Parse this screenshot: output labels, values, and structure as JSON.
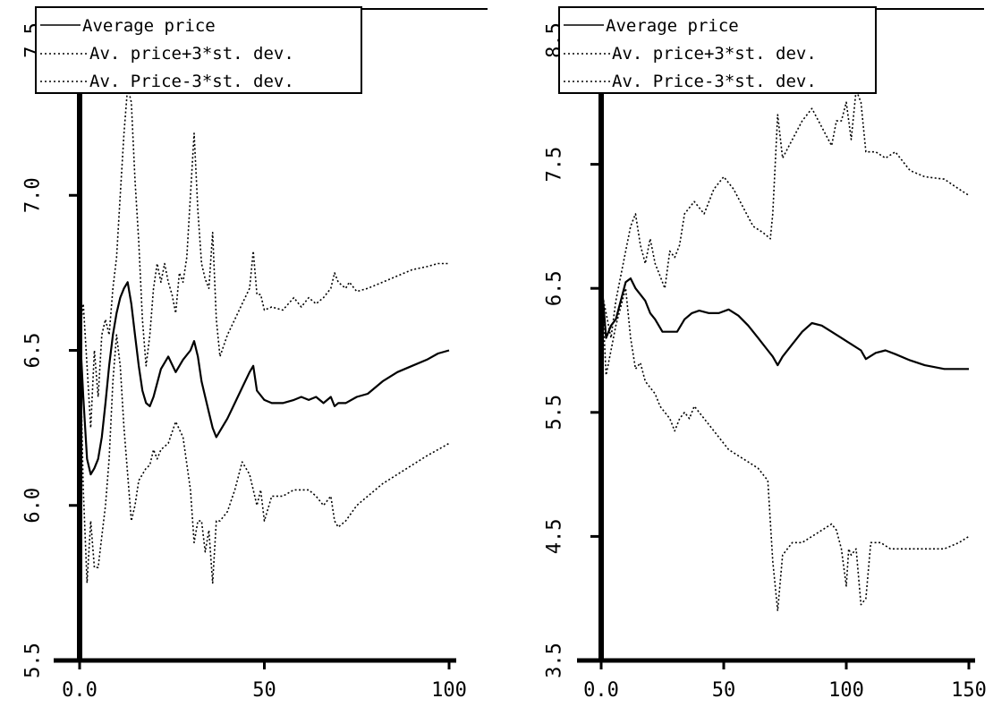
{
  "chart_data": [
    {
      "type": "line",
      "title": "",
      "xlabel": "",
      "ylabel": "",
      "xlim": [
        0,
        100
      ],
      "ylim": [
        5.5,
        7.5
      ],
      "xticks": [
        0,
        50,
        100
      ],
      "xtick_labels": [
        "0.0",
        "50",
        "100"
      ],
      "yticks": [
        5.5,
        6.0,
        6.5,
        7.0,
        7.5
      ],
      "ytick_labels": [
        "5.5",
        "6.0",
        "6.5",
        "7.0",
        "7.5"
      ],
      "grid": false,
      "legend_position": "top-left",
      "series": [
        {
          "name": "Average price",
          "style": "solid",
          "x": [
            0,
            1,
            2,
            3,
            4,
            5,
            6,
            7,
            8,
            9,
            10,
            11,
            12,
            13,
            14,
            15,
            16,
            17,
            18,
            19,
            20,
            22,
            24,
            26,
            28,
            30,
            31,
            32,
            33,
            34,
            35,
            36,
            37,
            38,
            40,
            42,
            44,
            46,
            47,
            48,
            50,
            52,
            55,
            58,
            60,
            62,
            64,
            66,
            68,
            69,
            70,
            72,
            75,
            78,
            82,
            86,
            90,
            94,
            97,
            100
          ],
          "y": [
            6.58,
            6.35,
            6.15,
            6.1,
            6.12,
            6.15,
            6.22,
            6.33,
            6.45,
            6.55,
            6.62,
            6.67,
            6.7,
            6.72,
            6.65,
            6.55,
            6.45,
            6.37,
            6.33,
            6.32,
            6.35,
            6.44,
            6.48,
            6.43,
            6.47,
            6.5,
            6.53,
            6.48,
            6.4,
            6.35,
            6.3,
            6.25,
            6.22,
            6.24,
            6.28,
            6.33,
            6.38,
            6.43,
            6.45,
            6.37,
            6.34,
            6.33,
            6.33,
            6.34,
            6.35,
            6.34,
            6.35,
            6.33,
            6.35,
            6.32,
            6.33,
            6.33,
            6.35,
            6.36,
            6.4,
            6.43,
            6.45,
            6.47,
            6.49,
            6.5
          ]
        },
        {
          "name": "Av. price+3*st. dev.",
          "style": "dotted",
          "x": [
            0,
            1,
            2,
            3,
            4,
            5,
            6,
            7,
            8,
            9,
            10,
            11,
            12,
            13,
            14,
            15,
            16,
            17,
            18,
            19,
            20,
            21,
            22,
            23,
            24,
            25,
            26,
            27,
            28,
            29,
            30,
            31,
            32,
            33,
            34,
            35,
            36,
            37,
            38,
            40,
            42,
            44,
            46,
            47,
            48,
            49,
            50,
            52,
            55,
            58,
            60,
            62,
            64,
            66,
            68,
            69,
            70,
            72,
            73,
            75,
            78,
            82,
            86,
            90,
            94,
            97,
            100
          ],
          "y": [
            6.55,
            6.65,
            6.45,
            6.25,
            6.5,
            6.35,
            6.55,
            6.6,
            6.55,
            6.7,
            6.8,
            7.0,
            7.2,
            7.35,
            7.3,
            7.05,
            6.85,
            6.6,
            6.45,
            6.55,
            6.7,
            6.78,
            6.72,
            6.78,
            6.72,
            6.68,
            6.62,
            6.75,
            6.72,
            6.8,
            7.0,
            7.2,
            6.95,
            6.78,
            6.73,
            6.7,
            6.88,
            6.6,
            6.48,
            6.55,
            6.6,
            6.65,
            6.7,
            6.82,
            6.68,
            6.68,
            6.63,
            6.64,
            6.63,
            6.67,
            6.64,
            6.67,
            6.65,
            6.67,
            6.7,
            6.75,
            6.72,
            6.7,
            6.72,
            6.69,
            6.7,
            6.72,
            6.74,
            6.76,
            6.77,
            6.78,
            6.78
          ]
        },
        {
          "name": "Av. Price-3*st. dev.",
          "style": "dotted",
          "x": [
            0,
            1,
            2,
            3,
            4,
            5,
            6,
            7,
            8,
            9,
            10,
            11,
            12,
            13,
            14,
            15,
            16,
            17,
            18,
            19,
            20,
            21,
            22,
            24,
            26,
            28,
            30,
            31,
            32,
            33,
            34,
            35,
            36,
            37,
            38,
            40,
            42,
            44,
            46,
            48,
            49,
            50,
            52,
            55,
            58,
            60,
            62,
            64,
            66,
            68,
            69,
            70,
            72,
            75,
            78,
            82,
            86,
            90,
            94,
            97,
            100
          ],
          "y": [
            6.6,
            6.05,
            5.75,
            5.95,
            5.8,
            5.8,
            5.9,
            6.0,
            6.15,
            6.4,
            6.55,
            6.45,
            6.25,
            6.1,
            5.95,
            6.0,
            6.08,
            6.1,
            6.12,
            6.13,
            6.18,
            6.15,
            6.18,
            6.2,
            6.27,
            6.22,
            6.05,
            5.88,
            5.95,
            5.95,
            5.85,
            5.92,
            5.75,
            5.95,
            5.95,
            5.98,
            6.05,
            6.14,
            6.1,
            6.0,
            6.05,
            5.95,
            6.03,
            6.03,
            6.05,
            6.05,
            6.05,
            6.03,
            6.0,
            6.03,
            5.95,
            5.93,
            5.95,
            6.0,
            6.03,
            6.07,
            6.1,
            6.13,
            6.16,
            6.18,
            6.2
          ]
        }
      ]
    },
    {
      "type": "line",
      "title": "",
      "xlabel": "",
      "ylabel": "",
      "xlim": [
        0,
        150
      ],
      "ylim": [
        3.5,
        8.5
      ],
      "xticks": [
        0,
        50,
        100,
        150
      ],
      "xtick_labels": [
        "0.0",
        "50",
        "100",
        "150"
      ],
      "yticks": [
        3.5,
        4.5,
        5.5,
        6.5,
        7.5,
        8.5
      ],
      "ytick_labels": [
        "3.5",
        "4.5",
        "5.5",
        "6.5",
        "7.5",
        "8.5"
      ],
      "grid": false,
      "legend_position": "top-left",
      "series": [
        {
          "name": "Average price",
          "style": "solid",
          "x": [
            0,
            2,
            4,
            6,
            8,
            10,
            12,
            14,
            16,
            18,
            20,
            22,
            25,
            28,
            31,
            34,
            37,
            40,
            44,
            48,
            52,
            56,
            60,
            64,
            68,
            70,
            72,
            74,
            78,
            82,
            86,
            90,
            94,
            98,
            102,
            106,
            108,
            112,
            116,
            120,
            126,
            132,
            140,
            150
          ],
          "y": [
            6.6,
            6.1,
            6.2,
            6.25,
            6.4,
            6.55,
            6.58,
            6.5,
            6.45,
            6.4,
            6.3,
            6.25,
            6.15,
            6.15,
            6.15,
            6.25,
            6.3,
            6.32,
            6.3,
            6.3,
            6.33,
            6.28,
            6.2,
            6.1,
            6.0,
            5.95,
            5.88,
            5.95,
            6.05,
            6.15,
            6.22,
            6.2,
            6.15,
            6.1,
            6.05,
            6.0,
            5.93,
            5.98,
            6.0,
            5.97,
            5.92,
            5.88,
            5.85,
            5.85
          ]
        },
        {
          "name": "Av. price+3*st. dev.",
          "style": "dotted",
          "x": [
            0,
            2,
            4,
            6,
            8,
            10,
            12,
            14,
            16,
            18,
            20,
            22,
            24,
            26,
            28,
            30,
            32,
            34,
            36,
            38,
            42,
            46,
            50,
            54,
            58,
            62,
            66,
            69,
            70,
            72,
            74,
            78,
            82,
            86,
            90,
            94,
            96,
            98,
            100,
            102,
            104,
            106,
            108,
            112,
            116,
            120,
            126,
            132,
            140,
            146,
            150
          ],
          "y": [
            6.5,
            6.3,
            6.1,
            6.4,
            6.6,
            6.8,
            7.0,
            7.1,
            6.85,
            6.7,
            6.9,
            6.7,
            6.6,
            6.5,
            6.8,
            6.75,
            6.85,
            7.1,
            7.15,
            7.2,
            7.1,
            7.3,
            7.4,
            7.3,
            7.15,
            7.0,
            6.95,
            6.9,
            7.1,
            7.9,
            7.55,
            7.7,
            7.85,
            7.95,
            7.8,
            7.65,
            7.85,
            7.85,
            8.0,
            7.7,
            8.1,
            8.0,
            7.6,
            7.6,
            7.55,
            7.6,
            7.45,
            7.4,
            7.38,
            7.3,
            7.25
          ]
        },
        {
          "name": "Av. Price-3*st. dev.",
          "style": "dotted",
          "x": [
            0,
            2,
            4,
            6,
            8,
            10,
            12,
            14,
            16,
            18,
            20,
            22,
            24,
            26,
            28,
            30,
            32,
            34,
            36,
            38,
            40,
            44,
            48,
            52,
            56,
            60,
            64,
            68,
            70,
            72,
            74,
            78,
            82,
            86,
            90,
            94,
            96,
            98,
            100,
            101,
            102,
            104,
            106,
            108,
            110,
            114,
            118,
            122,
            128,
            134,
            140,
            146,
            150
          ],
          "y": [
            6.6,
            5.8,
            6.0,
            6.2,
            6.35,
            6.5,
            6.1,
            5.85,
            5.9,
            5.75,
            5.7,
            5.65,
            5.55,
            5.5,
            5.45,
            5.35,
            5.45,
            5.5,
            5.45,
            5.55,
            5.5,
            5.4,
            5.3,
            5.2,
            5.15,
            5.1,
            5.05,
            4.95,
            4.3,
            3.9,
            4.35,
            4.45,
            4.45,
            4.5,
            4.55,
            4.6,
            4.55,
            4.4,
            4.1,
            4.4,
            4.35,
            4.4,
            3.95,
            4.0,
            4.45,
            4.45,
            4.4,
            4.4,
            4.4,
            4.4,
            4.4,
            4.45,
            4.5
          ]
        }
      ]
    }
  ]
}
